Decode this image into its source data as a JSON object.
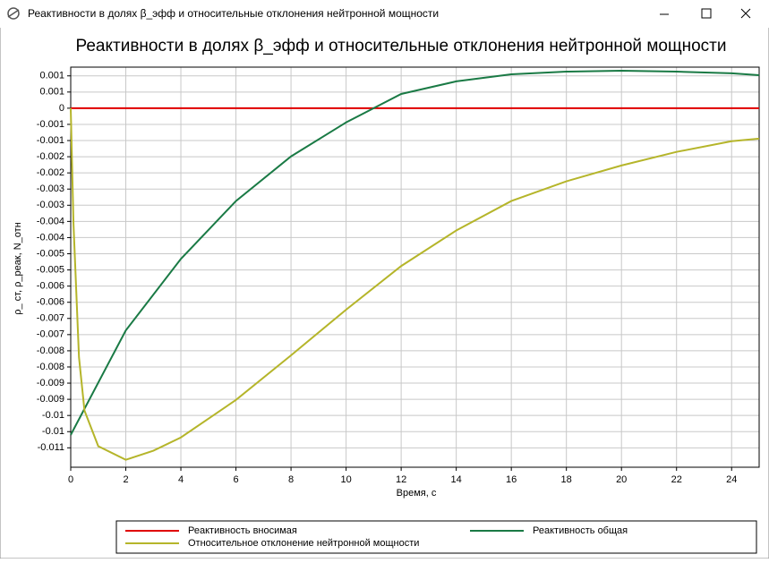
{
  "window_title": "Реактивности в долях β_эфф и относительные отклонения нейтронной мощности",
  "chart_data": {
    "type": "line",
    "title": "Реактивности в долях β_эфф и относительные отклонения нейтронной мощности",
    "x_label": "Время, с",
    "y_label": "ρ_ ст, ρ_реак, N_отн",
    "xlim": [
      0,
      25
    ],
    "xticks": [
      0,
      2,
      4,
      6,
      8,
      10,
      12,
      14,
      16,
      18,
      20,
      22,
      24
    ],
    "ylim": [
      -0.0111,
      0.00127
    ],
    "yticks": [
      0.001,
      {
        "value": 0.0005,
        "label": "0.001"
      },
      0,
      {
        "value": -0.0005,
        "label": "-0.001"
      },
      -0.001,
      {
        "value": -0.0015,
        "label": "-0.002"
      },
      -0.002,
      {
        "value": -0.0025,
        "label": "-0.003"
      },
      -0.003,
      {
        "value": -0.0035,
        "label": "-0.004"
      },
      -0.004,
      {
        "value": -0.0045,
        "label": "-0.005"
      },
      -0.005,
      {
        "value": -0.0055,
        "label": "-0.006"
      },
      -0.006,
      {
        "value": -0.0065,
        "label": "-0.007"
      },
      -0.007,
      {
        "value": -0.0075,
        "label": "-0.008"
      },
      -0.008,
      {
        "value": -0.0085,
        "label": "-0.009"
      },
      -0.009,
      {
        "value": -0.0095,
        "label": "-0.01"
      },
      -0.01,
      {
        "value": -0.0105,
        "label": "-0.011"
      }
    ],
    "grid": true,
    "series": [
      {
        "name": "Реактивность вносимая",
        "color": "#e00000",
        "x": [
          0,
          25
        ],
        "values": [
          0,
          0
        ]
      },
      {
        "name": "Реактивность общая",
        "color": "#1a7a45",
        "x": [
          0,
          2,
          4,
          6,
          8,
          10,
          11,
          12,
          14,
          16,
          18,
          20,
          22,
          24,
          25
        ],
        "values": [
          -0.0101,
          -0.00687,
          -0.00466,
          -0.00287,
          -0.00149,
          -0.00044,
          0,
          0.00044,
          0.00083,
          0.00105,
          0.00113,
          0.00116,
          0.00113,
          0.00108,
          0.00102
        ]
      },
      {
        "name": "Относительное отклонение нейтронной мощности",
        "color": "#b5b52a",
        "x": [
          0,
          0.1,
          0.3,
          0.5,
          1,
          2,
          3,
          4,
          6,
          8,
          10,
          12,
          14,
          16,
          18,
          20,
          22,
          24,
          25
        ],
        "values": [
          0,
          -0.00356,
          -0.0077,
          -0.00935,
          -0.01045,
          -0.01087,
          -0.01059,
          -0.01018,
          -0.00902,
          -0.00764,
          -0.00623,
          -0.00488,
          -0.00378,
          -0.00287,
          -0.00226,
          -0.00177,
          -0.00135,
          -0.00102,
          -0.00094
        ]
      }
    ]
  }
}
